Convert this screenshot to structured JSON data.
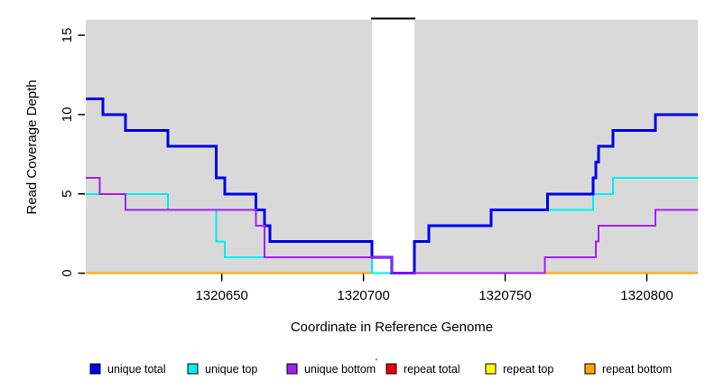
{
  "chart_data": {
    "type": "line",
    "subtype": "step-coverage",
    "title": "",
    "xlabel": "Coordinate in Reference Genome",
    "ylabel": "Read Coverage Depth",
    "xlim": [
      1320602,
      1320818
    ],
    "ylim": [
      0,
      16
    ],
    "x_ticks": [
      1320650,
      1320700,
      1320750,
      1320800
    ],
    "x_tick_labels": [
      "1320650",
      "1320700",
      "1320750",
      "1320800"
    ],
    "y_ticks": [
      0,
      5,
      10,
      15
    ],
    "y_tick_labels": [
      "0",
      "5",
      "10",
      "15"
    ],
    "grid": false,
    "plot_bg_color": "#d9d9d9",
    "masked_region": {
      "x_start": 1320703,
      "x_end": 1320718,
      "top_bar_color": "#000000"
    },
    "series": [
      {
        "name": "repeat total",
        "color": "#ee0000",
        "line_width": 2,
        "steps": [
          [
            1320602,
            0
          ]
        ]
      },
      {
        "name": "repeat top",
        "color": "#ffff00",
        "line_width": 2,
        "steps": [
          [
            1320602,
            0
          ]
        ]
      },
      {
        "name": "repeat bottom",
        "color": "#ffa500",
        "line_width": 2,
        "steps": [
          [
            1320602,
            0
          ]
        ]
      },
      {
        "name": "unique top",
        "color": "#00eeee",
        "line_width": 2,
        "steps": [
          [
            1320602,
            5
          ],
          [
            1320631,
            4
          ],
          [
            1320648,
            2
          ],
          [
            1320651,
            1
          ],
          [
            1320703,
            0
          ],
          [
            1320718,
            2
          ],
          [
            1320723,
            3
          ],
          [
            1320745,
            4
          ],
          [
            1320781,
            5
          ],
          [
            1320788,
            6
          ]
        ]
      },
      {
        "name": "unique total",
        "color": "#0000ee",
        "line_width": 3,
        "steps": [
          [
            1320602,
            11
          ],
          [
            1320608,
            10
          ],
          [
            1320616,
            9
          ],
          [
            1320631,
            8
          ],
          [
            1320648,
            6
          ],
          [
            1320651,
            5
          ],
          [
            1320662,
            4
          ],
          [
            1320665,
            3
          ],
          [
            1320667,
            2
          ],
          [
            1320703,
            1
          ],
          [
            1320710,
            0
          ],
          [
            1320718,
            2
          ],
          [
            1320723,
            3
          ],
          [
            1320745,
            4
          ],
          [
            1320765,
            5
          ],
          [
            1320781,
            6
          ],
          [
            1320782,
            7
          ],
          [
            1320783,
            8
          ],
          [
            1320788,
            9
          ],
          [
            1320803,
            10
          ]
        ]
      },
      {
        "name": "unique bottom",
        "color": "#a020f0",
        "line_width": 2,
        "steps": [
          [
            1320602,
            6
          ],
          [
            1320607,
            5
          ],
          [
            1320616,
            4
          ],
          [
            1320662,
            3
          ],
          [
            1320665,
            1
          ],
          [
            1320710,
            0
          ],
          [
            1320764,
            1
          ],
          [
            1320782,
            2
          ],
          [
            1320783,
            3
          ],
          [
            1320803,
            4
          ]
        ]
      }
    ],
    "legend": {
      "position": "bottom",
      "items": [
        {
          "label": "unique total",
          "color": "#0000ee"
        },
        {
          "label": "unique top",
          "color": "#00eeee"
        },
        {
          "label": "unique bottom",
          "color": "#a020f0"
        },
        {
          "label": "repeat total",
          "color": "#ee0000"
        },
        {
          "label": "repeat top",
          "color": "#ffff00"
        },
        {
          "label": "repeat bottom",
          "color": "#ffa500"
        }
      ],
      "stray_mark": "'"
    }
  }
}
